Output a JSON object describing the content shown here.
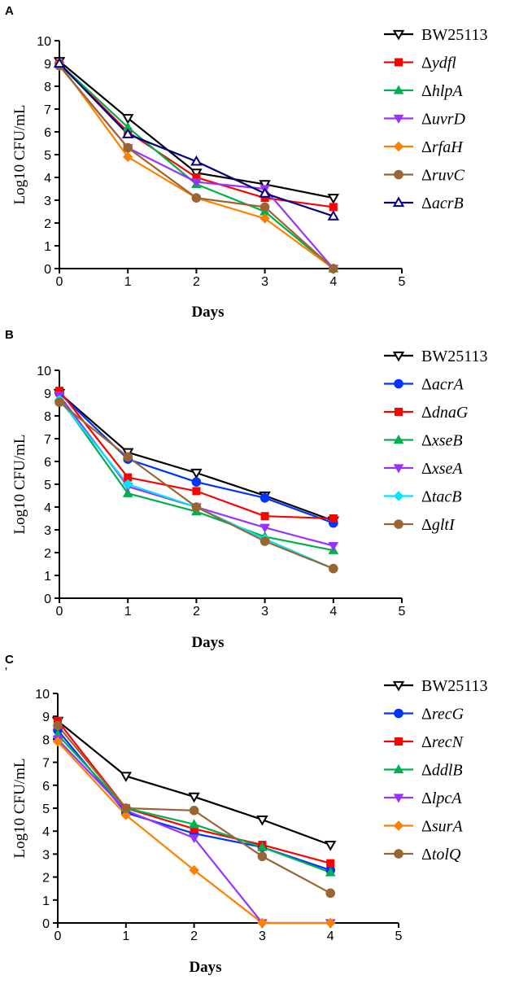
{
  "figure": {
    "panels": [
      {
        "letter": "A",
        "legend_prefix": "Δ"
      },
      {
        "letter": "B",
        "legend_prefix": "Δ"
      },
      {
        "letter": "C",
        "legend_prefix": "Δ"
      }
    ],
    "stray_mark": "'"
  },
  "chart_data": [
    {
      "panel": "A",
      "type": "line",
      "xlabel": "Days",
      "ylabel": "Log10 CFU/mL",
      "xlim": [
        0,
        5
      ],
      "ylim": [
        0,
        10
      ],
      "xticks": [
        "0",
        "1",
        "2",
        "3",
        "4",
        "5"
      ],
      "yticks": [
        "0",
        "1",
        "2",
        "3",
        "4",
        "5",
        "6",
        "7",
        "8",
        "9",
        "10"
      ],
      "x": [
        0,
        1,
        2,
        3,
        4
      ],
      "series": [
        {
          "name": "BW25113",
          "italic": false,
          "color": "#000000",
          "marker": "tri-down-open",
          "values": [
            9.1,
            6.6,
            4.2,
            3.7,
            3.1
          ]
        },
        {
          "name": "ydfl",
          "italic": true,
          "color": "#ff0000",
          "marker": "square",
          "values": [
            9.0,
            6.0,
            4.0,
            3.1,
            2.7
          ]
        },
        {
          "name": "hlpA",
          "italic": true,
          "color": "#00b050",
          "marker": "tri-up",
          "values": [
            9.0,
            6.2,
            3.7,
            2.5,
            0.0
          ]
        },
        {
          "name": "uvrD",
          "italic": true,
          "color": "#9933ff",
          "marker": "tri-down",
          "values": [
            8.9,
            5.3,
            3.8,
            3.5,
            0.0
          ]
        },
        {
          "name": "rfaH",
          "italic": true,
          "color": "#ff8000",
          "marker": "diamond",
          "values": [
            9.0,
            4.9,
            3.1,
            2.2,
            0.0
          ]
        },
        {
          "name": "ruvC",
          "italic": true,
          "color": "#996633",
          "marker": "circle",
          "values": [
            8.9,
            5.3,
            3.1,
            2.7,
            0.0
          ]
        },
        {
          "name": "acrB",
          "italic": true,
          "color": "#000080",
          "marker": "tri-up-open",
          "values": [
            9.0,
            5.9,
            4.7,
            3.3,
            2.3
          ]
        }
      ]
    },
    {
      "panel": "B",
      "type": "line",
      "xlabel": "Days",
      "ylabel": "Log10 CFU/mL",
      "xlim": [
        0,
        5
      ],
      "ylim": [
        0,
        10
      ],
      "xticks": [
        "0",
        "1",
        "2",
        "3",
        "4",
        "5"
      ],
      "yticks": [
        "0",
        "1",
        "2",
        "3",
        "4",
        "5",
        "6",
        "7",
        "8",
        "9",
        "10"
      ],
      "x": [
        0,
        1,
        2,
        3,
        4
      ],
      "series": [
        {
          "name": "BW25113",
          "italic": false,
          "color": "#000000",
          "marker": "tri-down-open",
          "values": [
            9.0,
            6.4,
            5.5,
            4.5,
            3.4
          ]
        },
        {
          "name": "acrA",
          "italic": true,
          "color": "#0033ff",
          "marker": "circle",
          "values": [
            9.0,
            6.1,
            5.1,
            4.4,
            3.3
          ]
        },
        {
          "name": "dnaG",
          "italic": true,
          "color": "#ff0000",
          "marker": "square",
          "values": [
            9.1,
            5.3,
            4.7,
            3.6,
            3.5
          ]
        },
        {
          "name": "xseB",
          "italic": true,
          "color": "#00b050",
          "marker": "tri-up",
          "values": [
            8.8,
            4.6,
            3.8,
            2.7,
            2.1
          ]
        },
        {
          "name": "xseA",
          "italic": true,
          "color": "#9933ff",
          "marker": "tri-down",
          "values": [
            8.9,
            4.9,
            4.0,
            3.1,
            2.3
          ]
        },
        {
          "name": "tacB",
          "italic": true,
          "color": "#00e5ff",
          "marker": "diamond",
          "values": [
            8.7,
            5.0,
            4.0,
            2.6,
            1.3
          ]
        },
        {
          "name": "gltI",
          "italic": true,
          "color": "#996633",
          "marker": "circle",
          "values": [
            8.6,
            6.2,
            4.0,
            2.5,
            1.3
          ]
        }
      ]
    },
    {
      "panel": "C",
      "type": "line",
      "xlabel": "Days",
      "ylabel": "Log10 CFU/mL",
      "xlim": [
        0,
        5
      ],
      "ylim": [
        0,
        10
      ],
      "xticks": [
        "0",
        "1",
        "2",
        "3",
        "4",
        "5"
      ],
      "yticks": [
        "0",
        "1",
        "2",
        "3",
        "4",
        "5",
        "6",
        "7",
        "8",
        "9",
        "10"
      ],
      "x": [
        0,
        1,
        2,
        3,
        4
      ],
      "series": [
        {
          "name": "BW25113",
          "italic": false,
          "color": "#000000",
          "marker": "tri-down-open",
          "values": [
            8.8,
            6.4,
            5.5,
            4.5,
            3.4
          ]
        },
        {
          "name": "recG",
          "italic": true,
          "color": "#0033ff",
          "marker": "circle",
          "values": [
            8.4,
            4.8,
            3.9,
            3.3,
            2.3
          ]
        },
        {
          "name": "recN",
          "italic": true,
          "color": "#ff0000",
          "marker": "square",
          "values": [
            8.8,
            5.0,
            4.1,
            3.4,
            2.6
          ]
        },
        {
          "name": "ddlB",
          "italic": true,
          "color": "#00b050",
          "marker": "tri-up",
          "values": [
            8.2,
            5.0,
            4.3,
            3.3,
            2.2
          ]
        },
        {
          "name": "lpcA",
          "italic": true,
          "color": "#9933ff",
          "marker": "tri-down",
          "values": [
            8.0,
            4.9,
            3.7,
            0.0,
            0.0
          ]
        },
        {
          "name": "surA",
          "italic": true,
          "color": "#ff8000",
          "marker": "diamond",
          "values": [
            7.9,
            4.7,
            2.3,
            0.0,
            0.0
          ]
        },
        {
          "name": "tolQ",
          "italic": true,
          "color": "#996633",
          "marker": "circle",
          "values": [
            8.6,
            5.0,
            4.9,
            2.9,
            1.3
          ]
        }
      ]
    }
  ]
}
